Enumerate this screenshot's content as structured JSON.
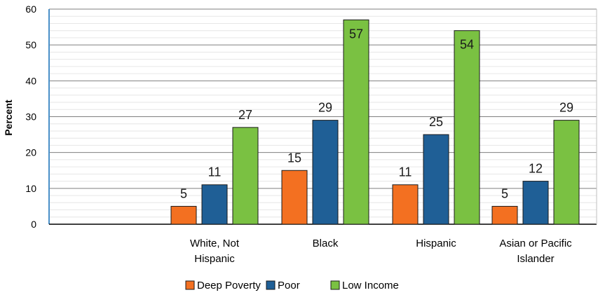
{
  "chart_data": {
    "type": "bar",
    "ylabel": "Percent",
    "ylim": [
      0,
      60
    ],
    "yticks": [
      0,
      10,
      20,
      30,
      40,
      50,
      60
    ],
    "grid": true,
    "legend_position": "bottom",
    "categories": [
      [
        "White, Not",
        "Hispanic"
      ],
      [
        "Black"
      ],
      [
        "Hispanic"
      ],
      [
        "Asian or Pacific",
        "Islander"
      ]
    ],
    "series": [
      {
        "name": "Deep Poverty",
        "color": "#f37021",
        "values": [
          5,
          15,
          11,
          5
        ]
      },
      {
        "name": "Poor",
        "color": "#1f5f96",
        "values": [
          11,
          29,
          25,
          12
        ]
      },
      {
        "name": "Low Income",
        "color": "#7ac142",
        "values": [
          27,
          57,
          54,
          29
        ]
      }
    ],
    "data_labels": true
  }
}
